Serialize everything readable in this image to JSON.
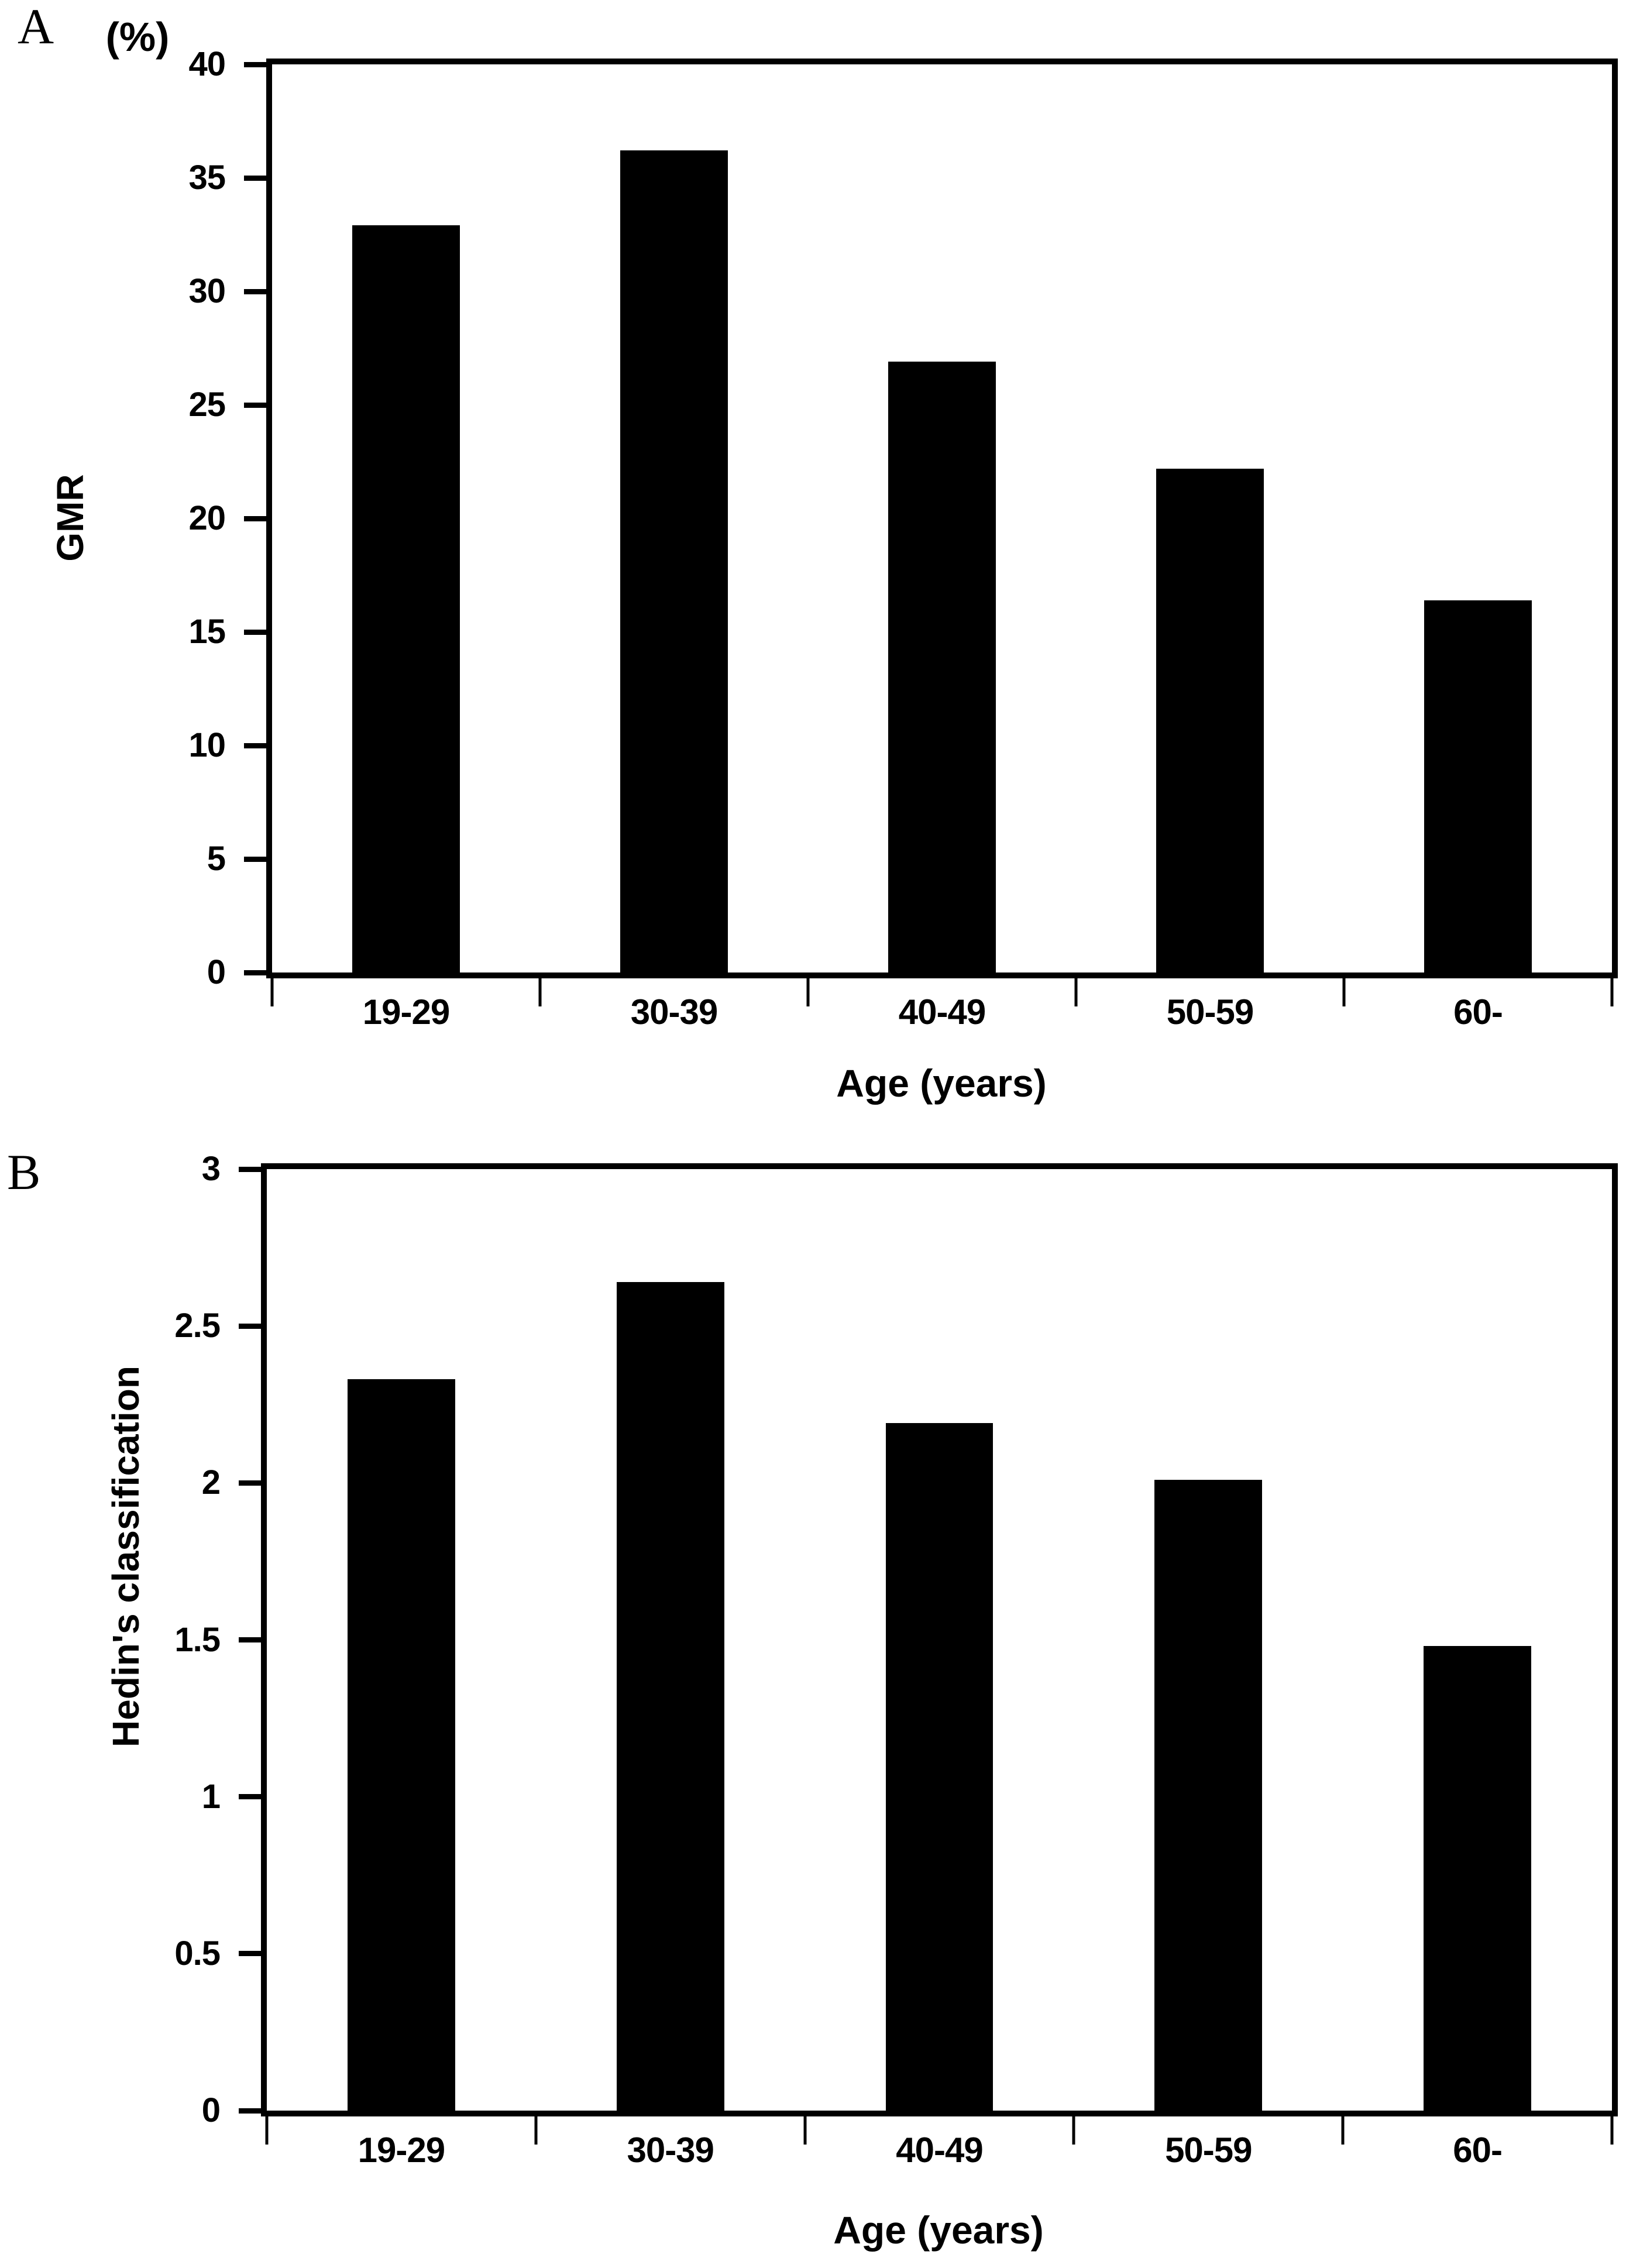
{
  "figure": {
    "background": "#ffffff",
    "panel_labels": [
      "A",
      "B"
    ]
  },
  "chart_data": [
    {
      "type": "bar",
      "panel": "A",
      "title": "",
      "categories": [
        "19-29",
        "30-39",
        "40-49",
        "50-59",
        "60-"
      ],
      "values": [
        32.9,
        36.2,
        26.9,
        22.2,
        16.4
      ],
      "xlabel": "Age (years)",
      "ylabel": "GMR",
      "unit": "(%)",
      "ylim": [
        0,
        40
      ],
      "y_ticks": [
        "0",
        "5",
        "10",
        "15",
        "20",
        "25",
        "30",
        "35",
        "40"
      ],
      "bar_color": "#000000",
      "grid": false,
      "legend": "none"
    },
    {
      "type": "bar",
      "panel": "B",
      "title": "",
      "categories": [
        "19-29",
        "30-39",
        "40-49",
        "50-59",
        "60-"
      ],
      "values": [
        2.33,
        2.64,
        2.19,
        2.01,
        1.48
      ],
      "xlabel": "Age (years)",
      "ylabel": "Hedin's classification",
      "unit": "",
      "ylim": [
        0,
        3
      ],
      "y_ticks": [
        "0",
        "0.5",
        "1",
        "1.5",
        "2",
        "2.5",
        "3"
      ],
      "bar_color": "#000000",
      "grid": false,
      "legend": "none"
    }
  ]
}
